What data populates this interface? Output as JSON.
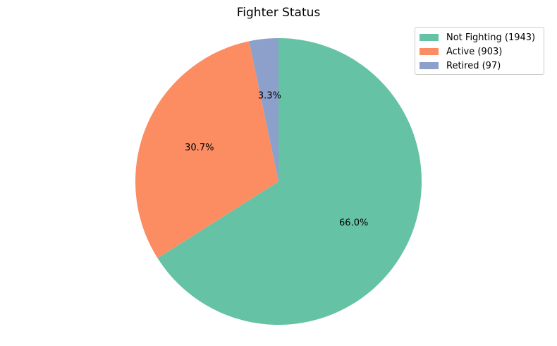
{
  "chart_data": {
    "type": "pie",
    "title": "Fighter Status",
    "categories": [
      "Not Fighting (1943)",
      "Active (903)",
      "Retired (97)"
    ],
    "values": [
      1943,
      903,
      97
    ],
    "percent_labels": [
      "66.0%",
      "30.7%",
      "3.3%"
    ],
    "colors": [
      "#66c2a5",
      "#fc8d62",
      "#8da0cb"
    ],
    "start_angle_deg": 90,
    "direction": "clockwise",
    "legend_position": "top-right"
  }
}
